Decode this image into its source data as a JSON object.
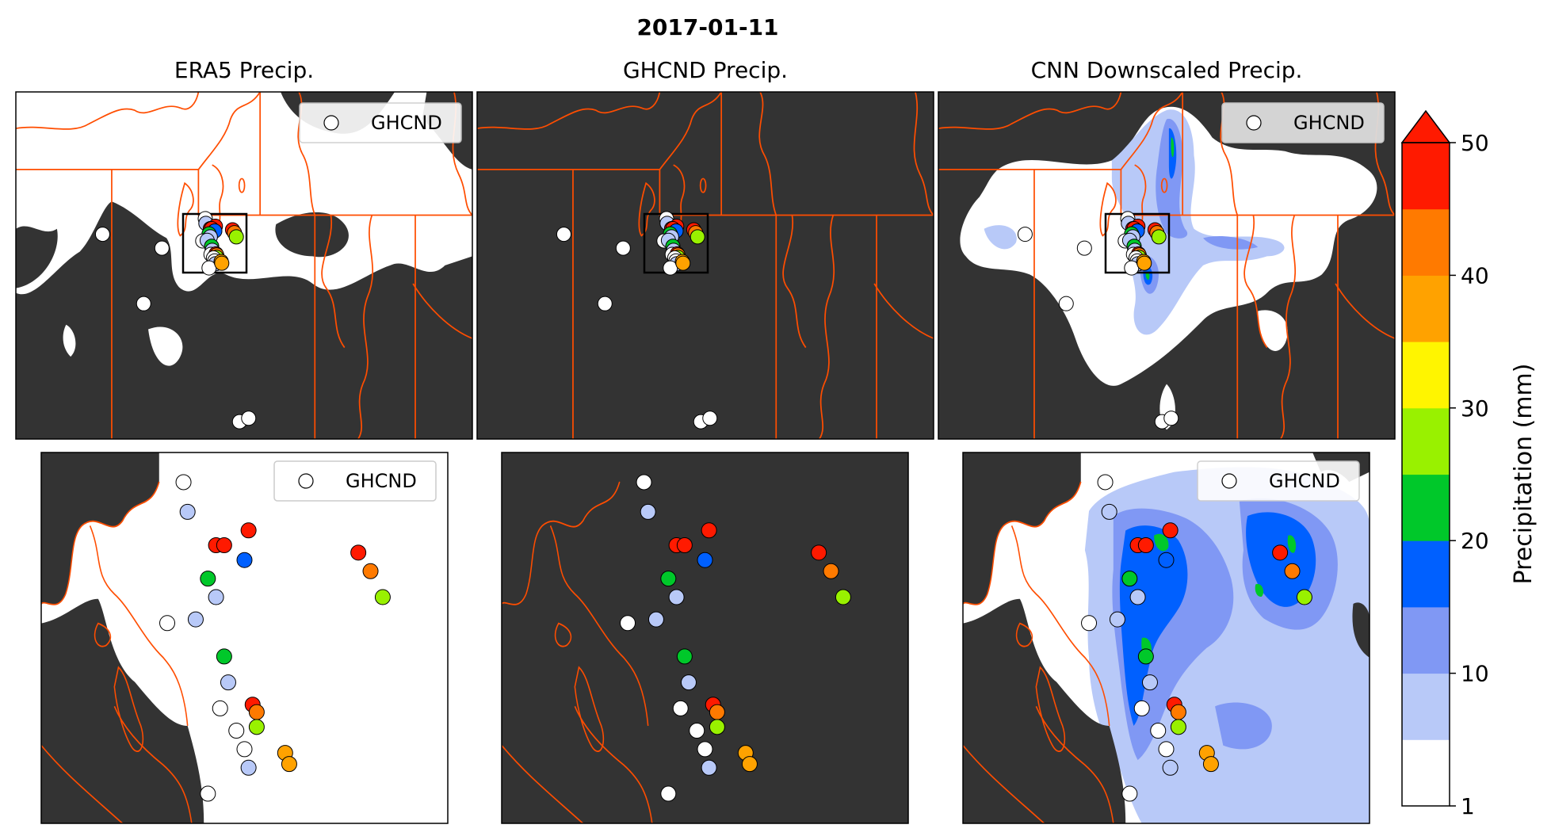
{
  "figure": {
    "title": "2017-01-11"
  },
  "colors": {
    "land_dark": "#333333",
    "border": "#ff4d00",
    "outline": "#000000"
  },
  "panels": [
    {
      "id": "era5-overview",
      "title": "ERA5 Precip.",
      "legend": "GHCND"
    },
    {
      "id": "ghcnd-overview",
      "title": "GHCND Precip.",
      "legend": ""
    },
    {
      "id": "cnn-overview",
      "title": "CNN Downscaled Precip.",
      "legend": "GHCND"
    },
    {
      "id": "era5-zoom",
      "title": "",
      "legend": "GHCND"
    },
    {
      "id": "ghcnd-zoom",
      "title": "",
      "legend": ""
    },
    {
      "id": "cnn-zoom",
      "title": "",
      "legend": "GHCND"
    }
  ],
  "colorbar": {
    "label": "Precipitation (mm)",
    "ticks": [
      "1",
      "10",
      "20",
      "30",
      "40",
      "50"
    ],
    "levels": [
      1,
      5,
      10,
      15,
      20,
      25,
      30,
      35,
      40,
      45,
      50
    ],
    "bins": [
      "#ffffff",
      "#b8c9f8",
      "#8098f4",
      "#0060ff",
      "#00c82a",
      "#99f100",
      "#fff500",
      "#ffa200",
      "#ff7a00",
      "#ff1a00"
    ],
    "extend_color": "#ff1a00"
  },
  "chart_data": {
    "type": "scatter",
    "date": "2017-01-11",
    "units": "mm",
    "stations": [
      {
        "precip": 1
      },
      {
        "precip": 8
      },
      {
        "precip": 50
      },
      {
        "precip": 50
      },
      {
        "precip": 50
      },
      {
        "precip": 18
      },
      {
        "precip": 22
      },
      {
        "precip": 10
      },
      {
        "precip": 1
      },
      {
        "precip": 10
      },
      {
        "precip": 21
      },
      {
        "precip": 8
      },
      {
        "precip": 1
      },
      {
        "precip": 50
      },
      {
        "precip": 42
      },
      {
        "precip": 27
      },
      {
        "precip": 1
      },
      {
        "precip": 1
      },
      {
        "precip": 7
      },
      {
        "precip": 1
      },
      {
        "precip": 50
      },
      {
        "precip": 42
      },
      {
        "precip": 27
      },
      {
        "precip": 40
      },
      {
        "precip": 40
      }
    ]
  }
}
